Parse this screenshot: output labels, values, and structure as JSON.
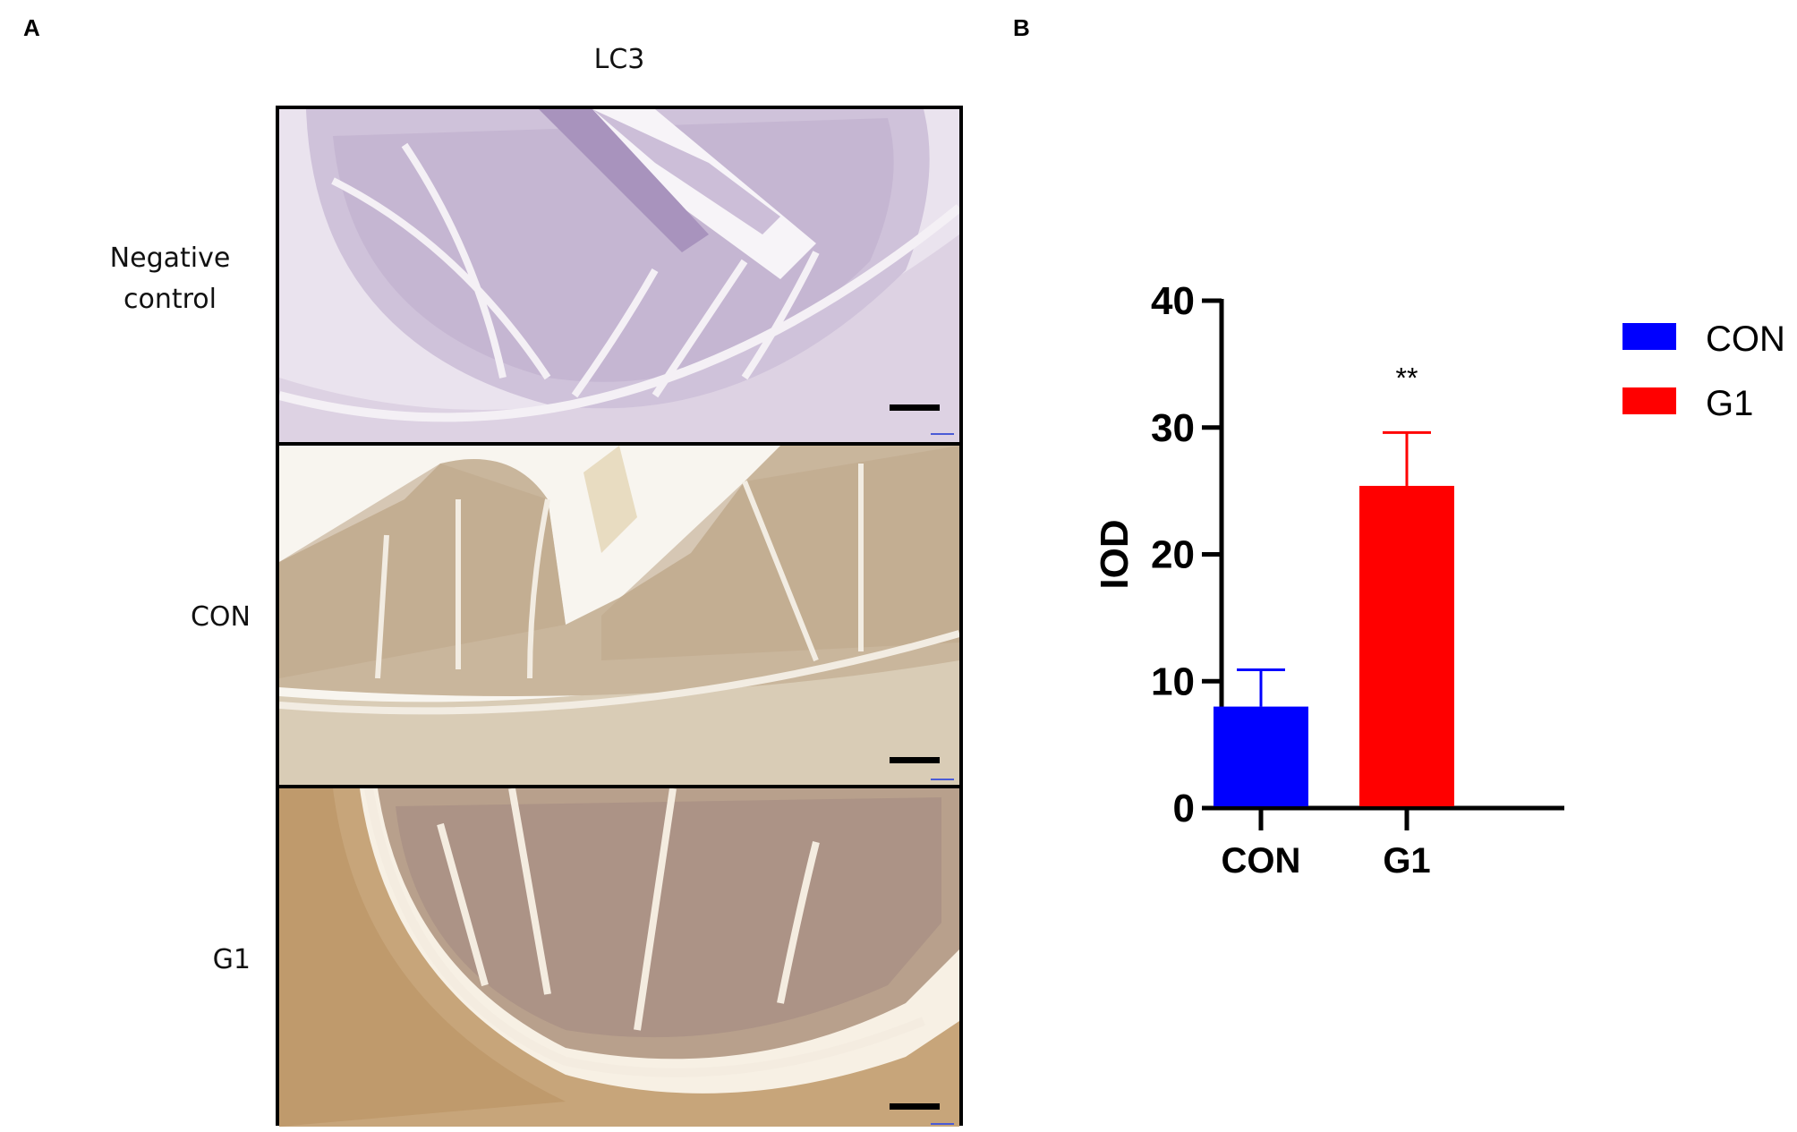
{
  "figure": {
    "panel_a_letter": "A",
    "panel_b_letter": "B",
    "panel_a": {
      "column_title": "LC3",
      "rows": [
        {
          "label_line1": "Negative",
          "label_line2": "control",
          "stain": "hematoxylin (purple)",
          "bg": "#efe8f0",
          "tissue": "#b8a9c6",
          "dark": "#8a6fa0"
        },
        {
          "label_line1": "CON",
          "label_line2": "",
          "stain": "DAB (light brown)",
          "bg": "#f7f3ec",
          "tissue": "#c2ab8c",
          "dark": "#8d7357"
        },
        {
          "label_line1": "G1",
          "label_line2": "",
          "stain": "DAB (brown)",
          "bg": "#f6efe3",
          "tissue": "#c09d73",
          "dark": "#8b6540"
        }
      ]
    }
  },
  "chart_data": {
    "type": "bar",
    "title": "",
    "xlabel": "",
    "ylabel": "IOD",
    "categories": [
      "CON",
      "G1"
    ],
    "values": [
      8.0,
      25.4
    ],
    "error_upper": [
      10.9,
      29.6
    ],
    "colors": [
      "#0000ff",
      "#ff0000"
    ],
    "ylim": [
      0,
      40
    ],
    "yticks": [
      "0",
      "10",
      "20",
      "30",
      "40"
    ],
    "grid": false,
    "annotations": [
      {
        "category": "G1",
        "text": "**"
      }
    ],
    "legend": {
      "position": "right",
      "entries": [
        {
          "label": "CON",
          "color": "#0000ff"
        },
        {
          "label": "G1",
          "color": "#ff0000"
        }
      ]
    }
  }
}
